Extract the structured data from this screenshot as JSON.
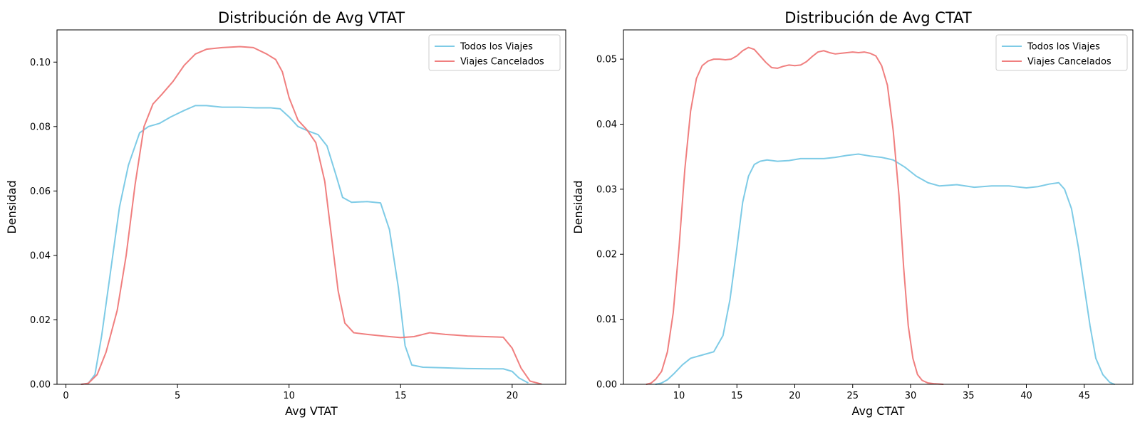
{
  "chart_data": [
    {
      "type": "line",
      "title": "Distribución de Avg VTAT",
      "xlabel": "Avg VTAT",
      "ylabel": "Densidad",
      "xlim": [
        -0.4,
        22.4
      ],
      "ylim": [
        0,
        0.11
      ],
      "xticks": [
        0,
        5,
        10,
        15,
        20
      ],
      "xtick_labels": [
        "0",
        "5",
        "10",
        "15",
        "20"
      ],
      "yticks": [
        0,
        0.02,
        0.04,
        0.06,
        0.08,
        0.1
      ],
      "ytick_labels": [
        "0.00",
        "0.02",
        "0.04",
        "0.06",
        "0.08",
        "0.10"
      ],
      "grid": false,
      "legend_position": "top-right",
      "series": [
        {
          "name": "Todos los Viajes",
          "color": "#7ecbe6",
          "x": [
            0.7,
            1.0,
            1.3,
            1.6,
            2.0,
            2.4,
            2.8,
            3.3,
            3.7,
            4.2,
            4.7,
            5.3,
            5.8,
            6.3,
            7.0,
            7.8,
            8.5,
            9.2,
            9.6,
            10.0,
            10.4,
            10.9,
            11.3,
            11.7,
            12.1,
            12.4,
            12.8,
            13.5,
            14.1,
            14.5,
            14.9,
            15.2,
            15.5,
            16.0,
            17.0,
            18.0,
            19.0,
            19.6,
            20.0,
            20.3,
            20.7
          ],
          "y": [
            0.0,
            0.0003,
            0.003,
            0.015,
            0.035,
            0.055,
            0.068,
            0.078,
            0.08,
            0.081,
            0.083,
            0.085,
            0.0865,
            0.0865,
            0.086,
            0.086,
            0.0858,
            0.0858,
            0.0855,
            0.083,
            0.08,
            0.0785,
            0.0775,
            0.074,
            0.065,
            0.058,
            0.0565,
            0.0567,
            0.0563,
            0.048,
            0.03,
            0.012,
            0.006,
            0.0053,
            0.0051,
            0.0049,
            0.0048,
            0.0048,
            0.004,
            0.002,
            0.0005
          ]
        },
        {
          "name": "Viajes Cancelados",
          "color": "#f07f7f",
          "x": [
            0.7,
            1.0,
            1.4,
            1.8,
            2.3,
            2.7,
            3.1,
            3.5,
            3.9,
            4.3,
            4.8,
            5.3,
            5.8,
            6.3,
            7.0,
            7.8,
            8.4,
            9.0,
            9.4,
            9.7,
            10.0,
            10.4,
            10.8,
            11.2,
            11.6,
            11.9,
            12.2,
            12.5,
            12.9,
            13.5,
            14.2,
            15.0,
            15.6,
            16.3,
            17.0,
            18.0,
            18.8,
            19.3,
            19.6,
            20.0,
            20.4,
            20.8,
            21.3
          ],
          "y": [
            0.0,
            0.0003,
            0.003,
            0.01,
            0.023,
            0.04,
            0.062,
            0.08,
            0.087,
            0.09,
            0.094,
            0.099,
            0.1025,
            0.104,
            0.1045,
            0.1048,
            0.1045,
            0.1025,
            0.1008,
            0.097,
            0.089,
            0.082,
            0.079,
            0.075,
            0.063,
            0.046,
            0.029,
            0.019,
            0.016,
            0.0155,
            0.015,
            0.0145,
            0.0148,
            0.016,
            0.0155,
            0.015,
            0.0148,
            0.0147,
            0.0146,
            0.0112,
            0.005,
            0.001,
            0.0001
          ]
        }
      ]
    },
    {
      "type": "line",
      "title": "Distribución de Avg CTAT",
      "xlabel": "Avg CTAT",
      "ylabel": "Densidad",
      "xlim": [
        5.2,
        49.2
      ],
      "ylim": [
        0,
        0.0545
      ],
      "xticks": [
        10,
        15,
        20,
        25,
        30,
        35,
        40,
        45
      ],
      "xtick_labels": [
        "10",
        "15",
        "20",
        "25",
        "30",
        "35",
        "40",
        "45"
      ],
      "yticks": [
        0,
        0.01,
        0.02,
        0.03,
        0.04,
        0.05
      ],
      "ytick_labels": [
        "0.00",
        "0.01",
        "0.02",
        "0.03",
        "0.04",
        "0.05"
      ],
      "grid": false,
      "legend_position": "top-right",
      "series": [
        {
          "name": "Todos los Viajes",
          "color": "#7ecbe6",
          "x": [
            8.0,
            8.5,
            9.0,
            9.6,
            10.3,
            11.0,
            12.0,
            13.0,
            13.8,
            14.4,
            15.0,
            15.5,
            16.0,
            16.5,
            17.0,
            17.6,
            18.5,
            19.5,
            20.5,
            21.5,
            22.5,
            23.5,
            24.5,
            25.5,
            26.5,
            27.5,
            28.5,
            29.5,
            30.5,
            31.5,
            32.5,
            34.0,
            35.5,
            37.0,
            38.5,
            40.0,
            41.0,
            42.0,
            42.8,
            43.3,
            43.9,
            44.5,
            45.0,
            45.5,
            46.0,
            46.6,
            47.2,
            47.6
          ],
          "y": [
            0.0,
            0.0002,
            0.0007,
            0.0017,
            0.003,
            0.004,
            0.0045,
            0.005,
            0.0075,
            0.013,
            0.021,
            0.028,
            0.032,
            0.0338,
            0.0343,
            0.0345,
            0.0343,
            0.0344,
            0.0347,
            0.0347,
            0.0347,
            0.0349,
            0.0352,
            0.0354,
            0.0351,
            0.0349,
            0.0345,
            0.0334,
            0.032,
            0.031,
            0.0305,
            0.0307,
            0.0303,
            0.0305,
            0.0305,
            0.0302,
            0.0304,
            0.0308,
            0.031,
            0.03,
            0.027,
            0.021,
            0.015,
            0.009,
            0.004,
            0.0015,
            0.0003,
            0.0
          ]
        },
        {
          "name": "Viajes Cancelados",
          "color": "#f07f7f",
          "x": [
            7.2,
            7.6,
            8.0,
            8.5,
            9.0,
            9.5,
            10.0,
            10.5,
            11.0,
            11.5,
            12.0,
            12.5,
            13.0,
            13.5,
            14.0,
            14.5,
            15.0,
            15.5,
            16.0,
            16.5,
            17.0,
            17.5,
            18.0,
            18.5,
            19.0,
            19.5,
            20.0,
            20.5,
            21.0,
            21.5,
            22.0,
            22.5,
            23.0,
            23.5,
            24.0,
            24.5,
            25.0,
            25.5,
            26.0,
            26.5,
            27.0,
            27.5,
            28.0,
            28.5,
            29.0,
            29.4,
            29.8,
            30.2,
            30.6,
            31.0,
            31.5,
            32.0,
            32.8
          ],
          "y": [
            0.0,
            0.0002,
            0.0008,
            0.002,
            0.005,
            0.011,
            0.021,
            0.033,
            0.042,
            0.047,
            0.049,
            0.0497,
            0.05,
            0.05,
            0.0499,
            0.05,
            0.0505,
            0.0513,
            0.0518,
            0.0515,
            0.0505,
            0.0495,
            0.0487,
            0.0486,
            0.0489,
            0.0491,
            0.049,
            0.0491,
            0.0496,
            0.0504,
            0.0511,
            0.0513,
            0.051,
            0.0508,
            0.0509,
            0.051,
            0.0511,
            0.051,
            0.0511,
            0.0509,
            0.0505,
            0.049,
            0.046,
            0.039,
            0.029,
            0.018,
            0.009,
            0.004,
            0.0015,
            0.0006,
            0.0002,
            0.0001,
            0.0
          ]
        }
      ]
    }
  ]
}
